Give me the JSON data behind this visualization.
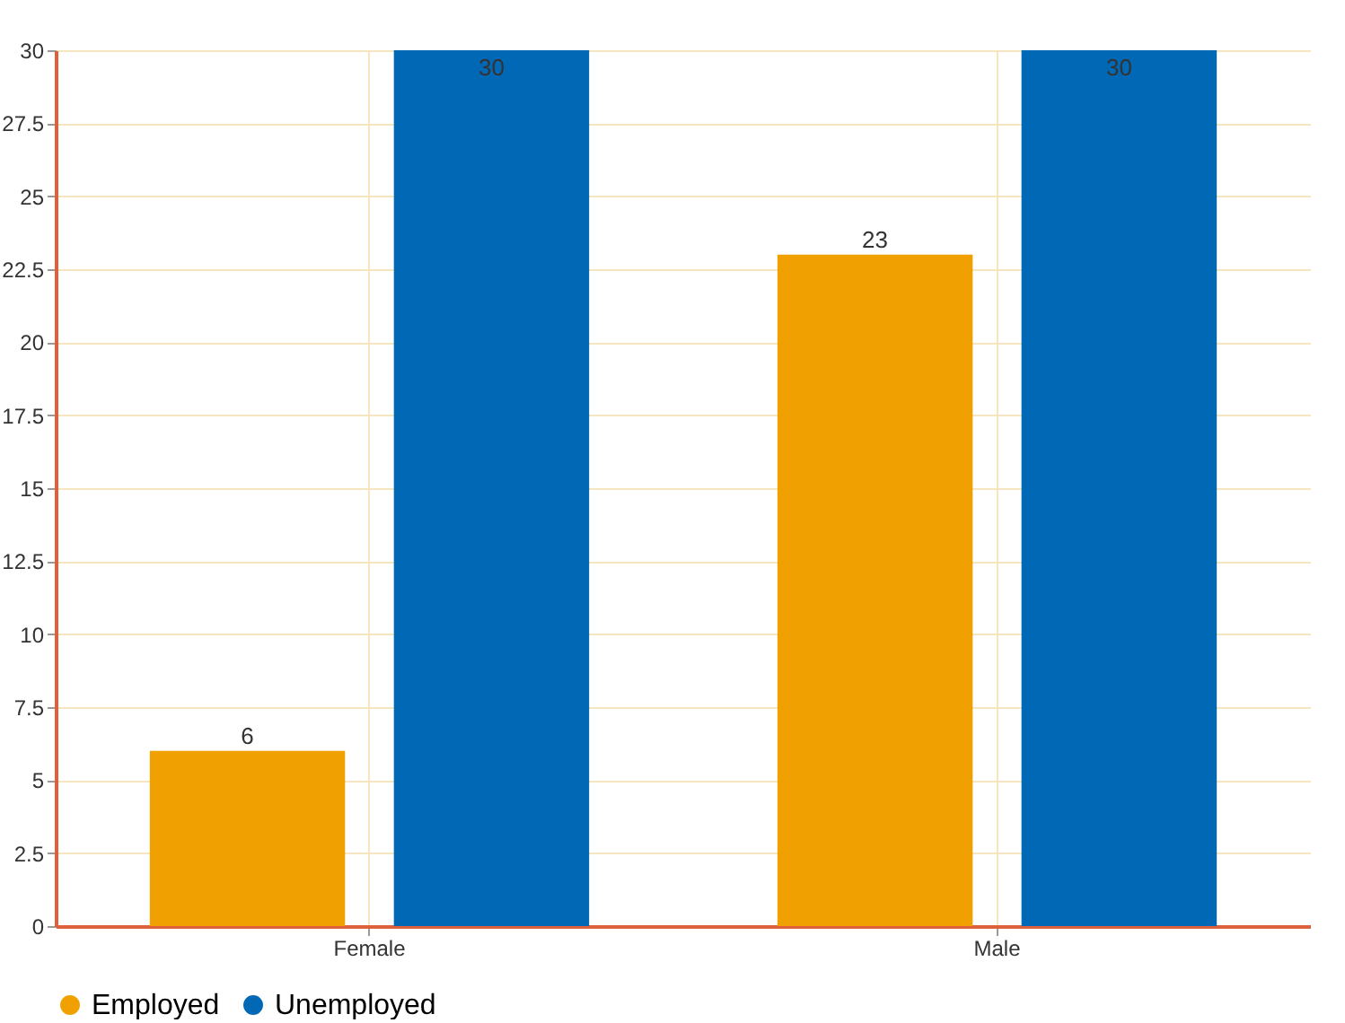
{
  "chart_data": {
    "type": "bar",
    "categories": [
      "Female",
      "Male"
    ],
    "series": [
      {
        "name": "Employed",
        "color": "#f0a000",
        "values": [
          6,
          23
        ]
      },
      {
        "name": "Unemployed",
        "color": "#0068b4",
        "values": [
          30,
          30
        ]
      }
    ],
    "ylim": [
      0,
      30
    ],
    "yticks": [
      0,
      2.5,
      5,
      7.5,
      10,
      12.5,
      15,
      17.5,
      20,
      22.5,
      25,
      27.5,
      30
    ],
    "grid": true,
    "legend": "bottom",
    "data_labels": true
  }
}
